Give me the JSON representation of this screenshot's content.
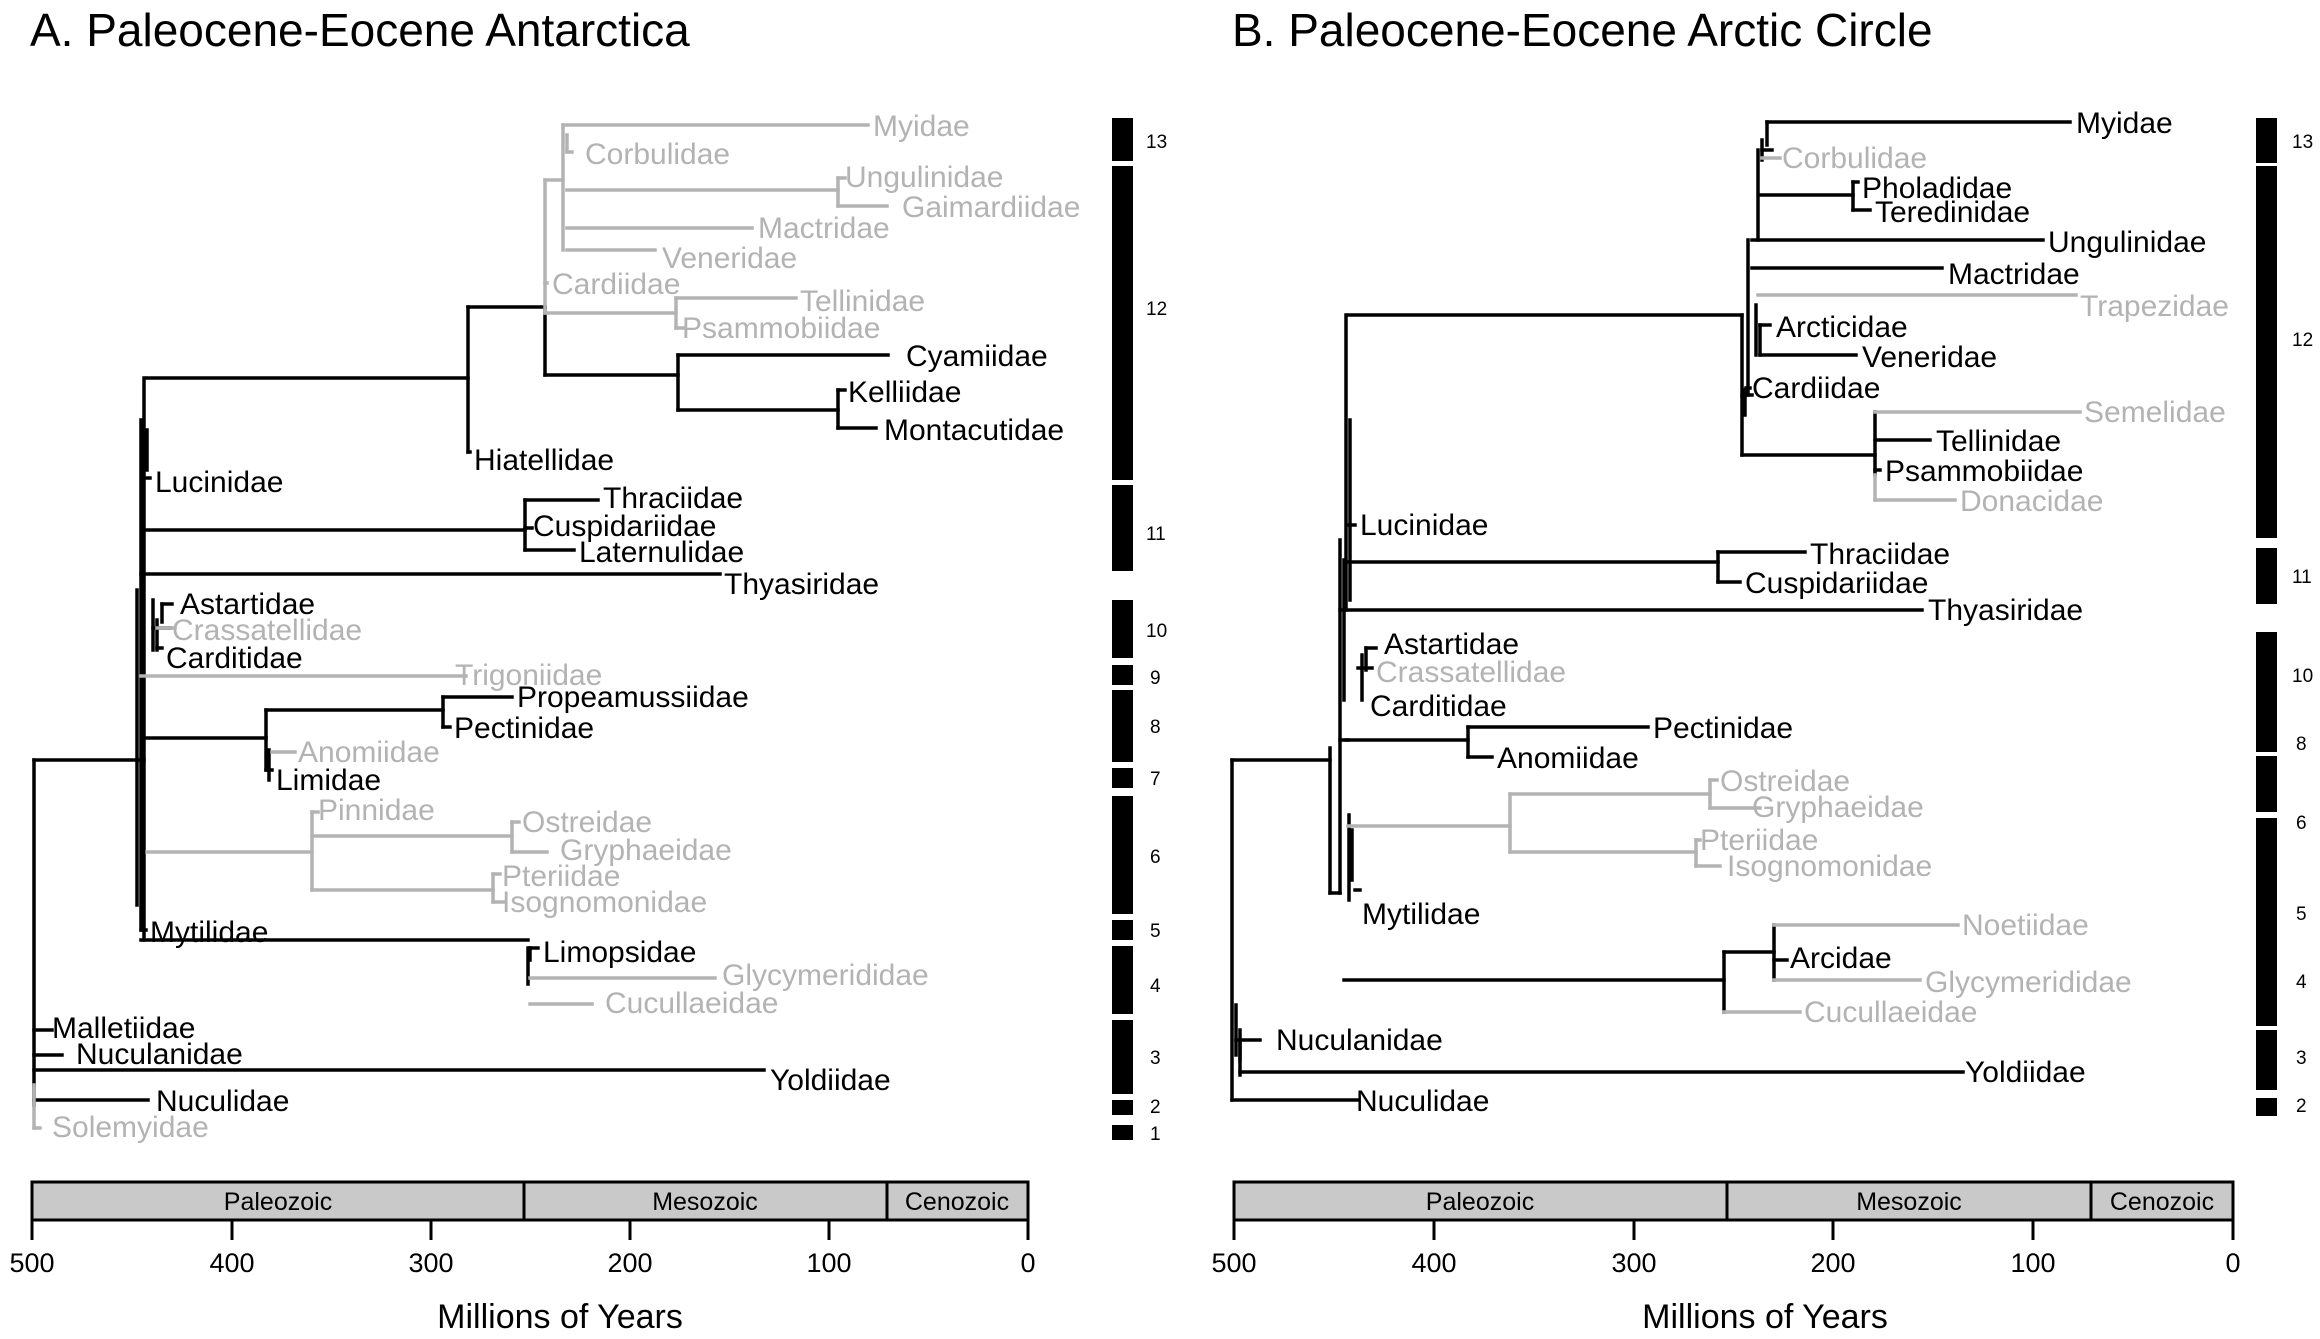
{
  "colors": {
    "present": "#000000",
    "absent": "#b3b3b3",
    "era_fill": "#c9c9c9"
  },
  "panels": [
    {
      "title": "A.  Paleocene-Eocene Antarctica",
      "scale": {
        "x0": 30,
        "x500": 30,
        "xzero": 1028
      },
      "axis_ticks": [
        "500",
        "400",
        "300",
        "200",
        "100",
        "0"
      ],
      "axis_label": "Millions of Years",
      "eras": [
        {
          "name": "Paleozoic",
          "from": 500,
          "to": 252
        },
        {
          "name": "Mesozoic",
          "from": 252,
          "to": 66
        },
        {
          "name": "Cenozoic",
          "from": 66,
          "to": 0
        }
      ],
      "clade_blocks": [
        "13",
        "12",
        "11",
        "10",
        "9",
        "8",
        "7",
        "6",
        "5",
        "4",
        "3",
        "2",
        "1"
      ],
      "taxa_labels": [
        {
          "name": "Myidae",
          "present": false
        },
        {
          "name": "Corbulidae",
          "present": false
        },
        {
          "name": "Ungulinidae",
          "present": false
        },
        {
          "name": "Gaimardiidae",
          "present": false
        },
        {
          "name": "Mactridae",
          "present": false
        },
        {
          "name": "Veneridae",
          "present": false
        },
        {
          "name": "Cardiidae",
          "present": false
        },
        {
          "name": "Tellinidae",
          "present": false
        },
        {
          "name": "Psammobiidae",
          "present": false
        },
        {
          "name": "Cyamiidae",
          "present": true
        },
        {
          "name": "Kelliidae",
          "present": true
        },
        {
          "name": "Montacutidae",
          "present": true
        },
        {
          "name": "Hiatellidae",
          "present": true
        },
        {
          "name": "Lucinidae",
          "present": true
        },
        {
          "name": "Thraciidae",
          "present": true
        },
        {
          "name": "Cuspidariidae",
          "present": true
        },
        {
          "name": "Laternulidae",
          "present": true
        },
        {
          "name": "Thyasiridae",
          "present": true
        },
        {
          "name": "Astartidae",
          "present": true
        },
        {
          "name": "Crassatellidae",
          "present": false
        },
        {
          "name": "Carditidae",
          "present": true
        },
        {
          "name": "Trigoniidae",
          "present": false
        },
        {
          "name": "Propeamussiidae",
          "present": true
        },
        {
          "name": "Pectinidae",
          "present": true
        },
        {
          "name": "Anomiidae",
          "present": false
        },
        {
          "name": "Limidae",
          "present": true
        },
        {
          "name": "Pinnidae",
          "present": false
        },
        {
          "name": "Ostreidae",
          "present": false
        },
        {
          "name": "Gryphaeidae",
          "present": false
        },
        {
          "name": "Pteriidae",
          "present": false
        },
        {
          "name": "Isognomonidae",
          "present": false
        },
        {
          "name": "Mytilidae",
          "present": true
        },
        {
          "name": "Limopsidae",
          "present": true
        },
        {
          "name": "Glycymerididae",
          "present": false
        },
        {
          "name": "Cucullaeidae",
          "present": false
        },
        {
          "name": "Malletiidae",
          "present": true
        },
        {
          "name": "Nuculanidae",
          "present": true
        },
        {
          "name": "Yoldiidae",
          "present": true
        },
        {
          "name": "Nuculidae",
          "present": true
        },
        {
          "name": "Solemyidae",
          "present": false
        }
      ]
    },
    {
      "title": "B.  Paleocene-Eocene Arctic Circle",
      "axis_ticks": [
        "500",
        "400",
        "300",
        "200",
        "100",
        "0"
      ],
      "axis_label": "Millions of Years",
      "eras": [
        {
          "name": "Paleozoic",
          "from": 500,
          "to": 252
        },
        {
          "name": "Mesozoic",
          "from": 252,
          "to": 66
        },
        {
          "name": "Cenozoic",
          "from": 66,
          "to": 0
        }
      ],
      "clade_blocks": [
        "13",
        "12",
        "11",
        "10",
        "8",
        "6",
        "5",
        "4",
        "3",
        "2"
      ],
      "taxa_labels": [
        {
          "name": "Myidae",
          "present": true
        },
        {
          "name": "Corbulidae",
          "present": false
        },
        {
          "name": "Pholadidae",
          "present": true
        },
        {
          "name": "Teredinidae",
          "present": true
        },
        {
          "name": "Ungulinidae",
          "present": true
        },
        {
          "name": "Mactridae",
          "present": true
        },
        {
          "name": "Trapezidae",
          "present": false
        },
        {
          "name": "Arcticidae",
          "present": true
        },
        {
          "name": "Veneridae",
          "present": true
        },
        {
          "name": "Cardiidae",
          "present": true
        },
        {
          "name": "Semelidae",
          "present": false
        },
        {
          "name": "Tellinidae",
          "present": true
        },
        {
          "name": "Psammobiidae",
          "present": true
        },
        {
          "name": "Donacidae",
          "present": false
        },
        {
          "name": "Lucinidae",
          "present": true
        },
        {
          "name": "Thraciidae",
          "present": true
        },
        {
          "name": "Cuspidariidae",
          "present": true
        },
        {
          "name": "Thyasiridae",
          "present": true
        },
        {
          "name": "Astartidae",
          "present": true
        },
        {
          "name": "Crassatellidae",
          "present": false
        },
        {
          "name": "Carditidae",
          "present": true
        },
        {
          "name": "Pectinidae",
          "present": true
        },
        {
          "name": "Anomiidae",
          "present": true
        },
        {
          "name": "Ostreidae",
          "present": false
        },
        {
          "name": "Gryphaeidae",
          "present": false
        },
        {
          "name": "Pteriidae",
          "present": false
        },
        {
          "name": "Isognomonidae",
          "present": false
        },
        {
          "name": "Mytilidae",
          "present": true
        },
        {
          "name": "Noetiidae",
          "present": false
        },
        {
          "name": "Arcidae",
          "present": true
        },
        {
          "name": "Glycymerididae",
          "present": false
        },
        {
          "name": "Cucullaeidae",
          "present": false
        },
        {
          "name": "Nuculanidae",
          "present": true
        },
        {
          "name": "Yoldiidae",
          "present": true
        },
        {
          "name": "Nuculidae",
          "present": true
        }
      ]
    }
  ]
}
